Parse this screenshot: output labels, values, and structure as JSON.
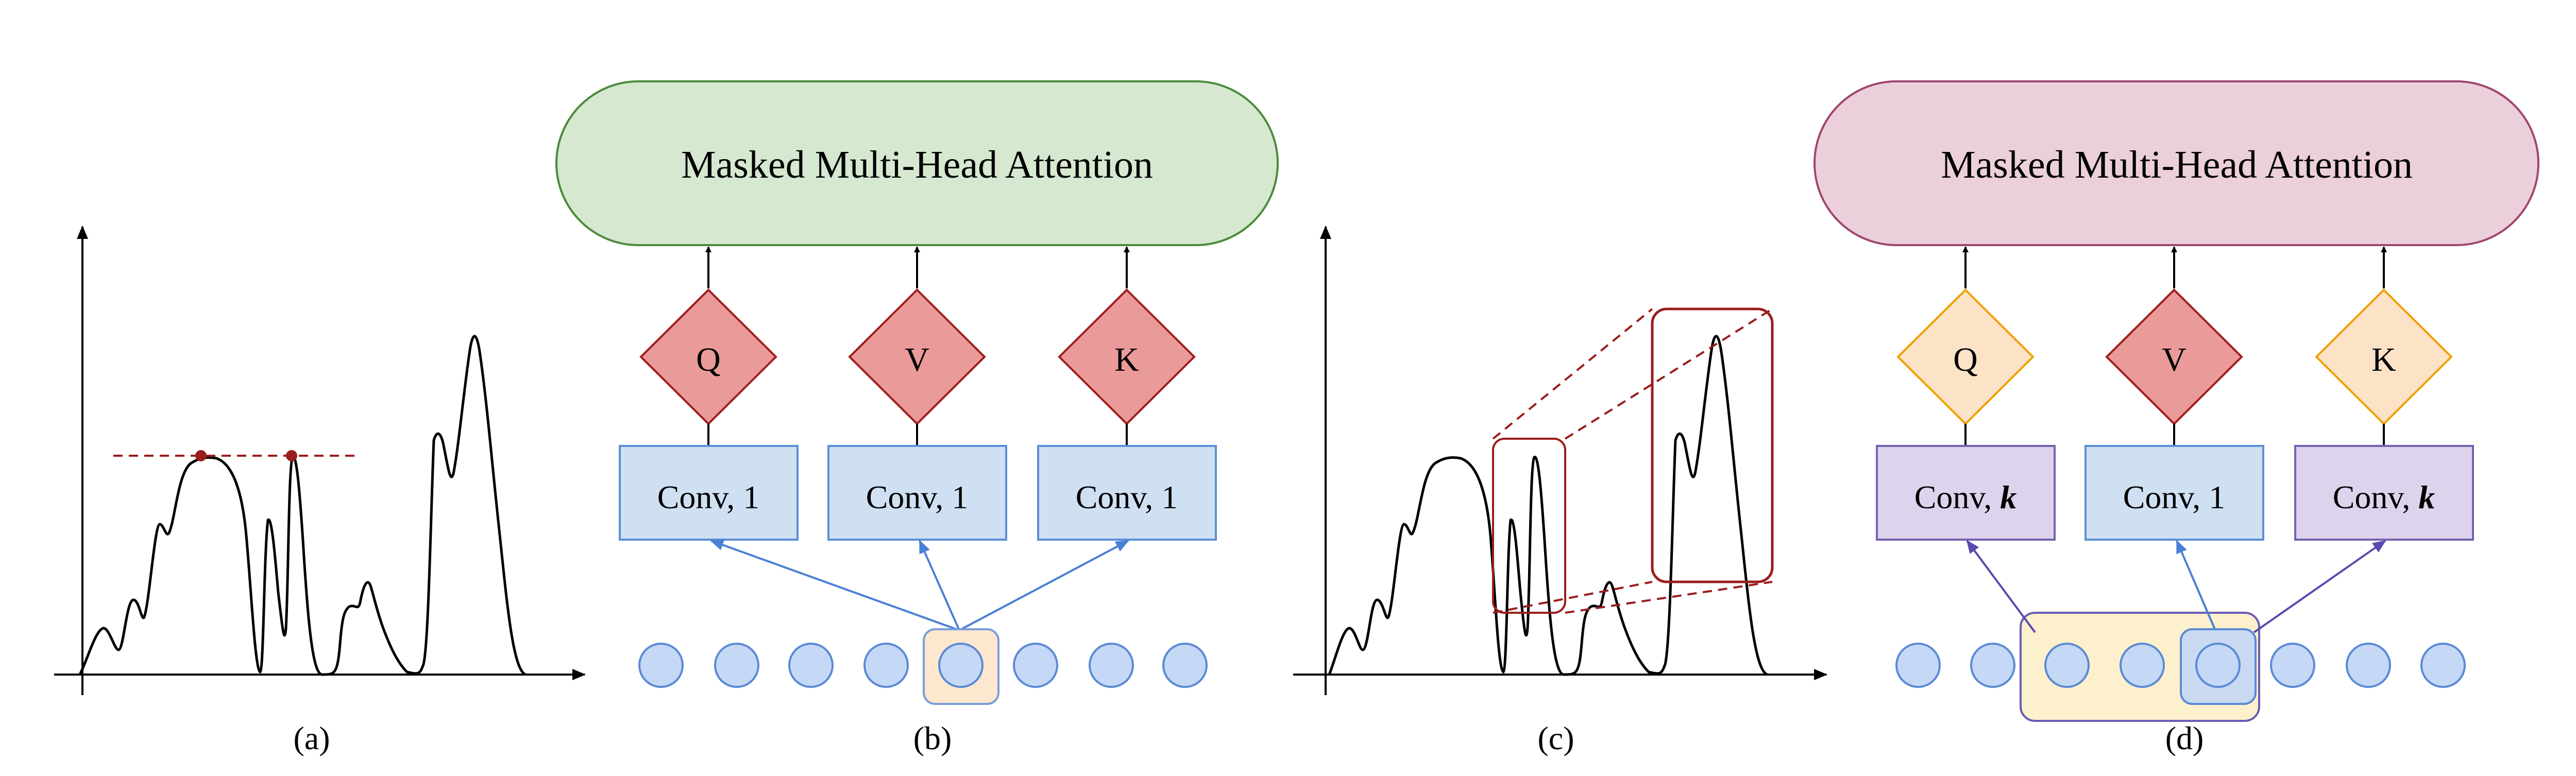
{
  "panels": {
    "a": {
      "caption": "(a)"
    },
    "b": {
      "caption": "(b)",
      "attention_label": "Masked Multi-Head Attention",
      "diamonds": [
        "Q",
        "V",
        "K"
      ],
      "convs": [
        {
          "prefix": "Conv, ",
          "arg": "1",
          "arg_style": "normal"
        },
        {
          "prefix": "Conv, ",
          "arg": "1",
          "arg_style": "normal"
        },
        {
          "prefix": "Conv, ",
          "arg": "1",
          "arg_style": "normal"
        }
      ]
    },
    "c": {
      "caption": "(c)"
    },
    "d": {
      "caption": "(d)",
      "attention_label": "Masked Multi-Head Attention",
      "diamonds": [
        "Q",
        "V",
        "K"
      ],
      "convs": [
        {
          "prefix": "Conv, ",
          "arg": "k",
          "arg_style": "bold-italic"
        },
        {
          "prefix": "Conv, ",
          "arg": "1",
          "arg_style": "normal"
        },
        {
          "prefix": "Conv, ",
          "arg": "k",
          "arg_style": "bold-italic"
        }
      ]
    }
  },
  "colors": {
    "green_fill": "#d6e8d0",
    "green_stroke": "#4c8a3a",
    "pink_fill": "#ebd0dc",
    "pink_stroke": "#a0456f",
    "diamond_red_fill": "#eb9a9a",
    "diamond_red_stroke": "#a01e1e",
    "diamond_peach_fill": "#fce3c8",
    "diamond_peach_stroke": "#f0a000",
    "conv_blue_fill": "#cfe0f3",
    "conv_blue_stroke": "#5b8fd6",
    "conv_purple_fill": "#ddd3ec",
    "conv_purple_stroke": "#7562b0",
    "node_fill": "#c5d8f5",
    "node_stroke": "#5a8ad6",
    "highlight_fill": "#fde8cf",
    "highlight_stroke": "#7a9ed8",
    "window_fill": "#fdf0cc",
    "window_stroke": "#6a5cb4",
    "dark_red": "#9a1d1d"
  }
}
